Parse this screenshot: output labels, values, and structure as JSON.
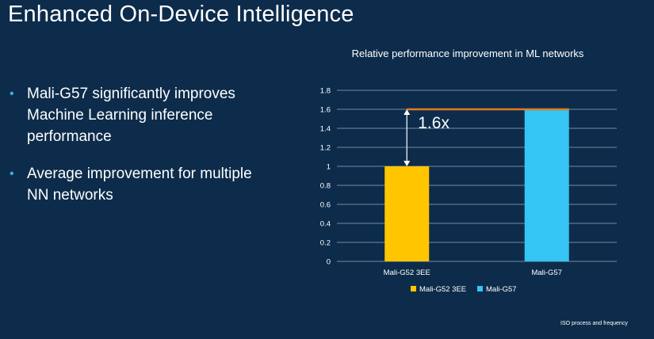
{
  "slide": {
    "title": "Enhanced On-Device Intelligence",
    "bullets": [
      "Mali-G57 significantly improves Machine Learning inference performance",
      "Average improvement for multiple NN networks"
    ],
    "footnote": "ISO process and frequency"
  },
  "colors": {
    "background": "#0d2c4b",
    "bullet": "#3fb4e0",
    "bar1": "#ffc600",
    "bar2": "#35c5f4",
    "annotation_line": "#e07a1f"
  },
  "chart_data": {
    "type": "bar",
    "title": "Relative performance improvement in ML networks",
    "categories": [
      "Mali-G52 3EE",
      "Mali-G57"
    ],
    "series": [
      {
        "name": "Mali-G52 3EE",
        "values": [
          1.0,
          null
        ]
      },
      {
        "name": "Mali-G57",
        "values": [
          null,
          1.6
        ]
      }
    ],
    "ylim": [
      0,
      1.8
    ],
    "yticks": [
      "0",
      "0.2",
      "0.4",
      "0.6",
      "0.8",
      "1",
      "1.2",
      "1.4",
      "1.6",
      "1.8"
    ],
    "grid": true,
    "legend": "bottom",
    "annotation": "1.6x"
  }
}
